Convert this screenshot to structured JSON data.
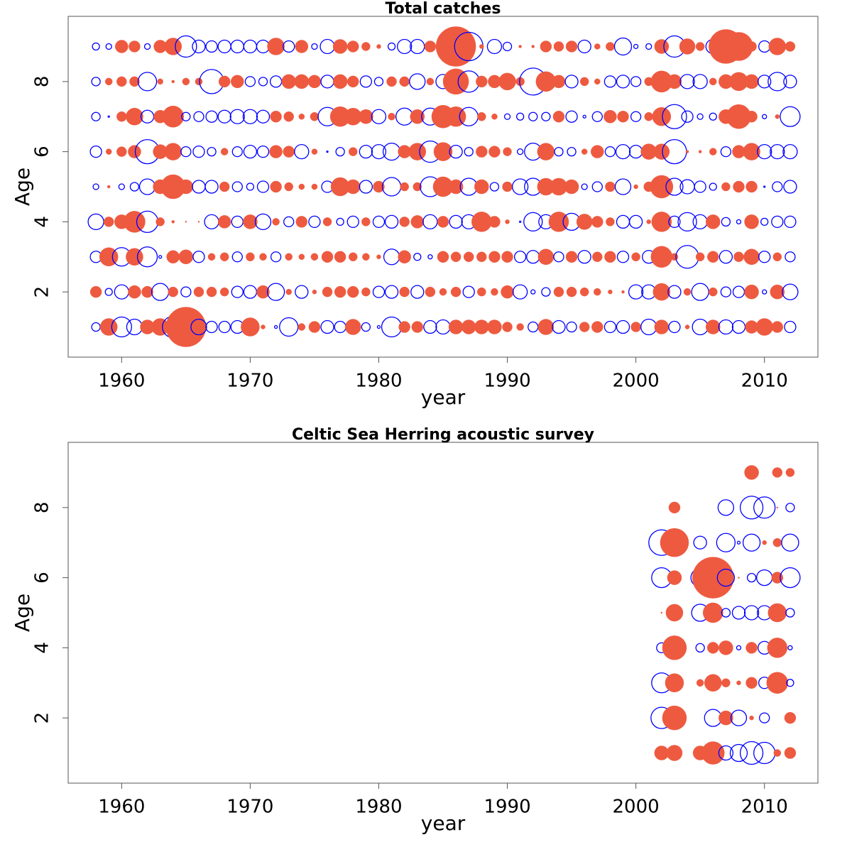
{
  "chart_data": [
    {
      "type": "bubble",
      "title": "Total catches",
      "x_label": "year",
      "y_label": "Age",
      "pos_color": "#ee5a40",
      "neg_color": "#0000ff",
      "xlim": [
        1955.84,
        2014.16
      ],
      "xticks": [
        1960,
        1970,
        1980,
        1990,
        2000,
        2010
      ],
      "ylim": [
        0.14,
        9.86
      ],
      "yticks": [
        2,
        4,
        6,
        8
      ],
      "x": [
        1958,
        1959,
        1960,
        1961,
        1962,
        1963,
        1964,
        1965,
        1966,
        1967,
        1968,
        1969,
        1970,
        1971,
        1972,
        1973,
        1974,
        1975,
        1976,
        1977,
        1978,
        1979,
        1980,
        1981,
        1982,
        1983,
        1984,
        1985,
        1986,
        1987,
        1988,
        1989,
        1990,
        1991,
        1992,
        1993,
        1994,
        1995,
        1996,
        1997,
        1998,
        1999,
        2000,
        2001,
        2002,
        2003,
        2004,
        2005,
        2006,
        2007,
        2008,
        2009,
        2010,
        2011,
        2012
      ],
      "y": [
        1,
        2,
        3,
        4,
        5,
        6,
        7,
        8,
        9
      ],
      "values": [
        [
          -0.6,
          1.2,
          -1.4,
          -1.1,
          1.0,
          1.2,
          -1.5,
          2.8,
          -1.1,
          -0.8,
          -0.8,
          -0.9,
          1.3,
          0.3,
          -0.2,
          -1.3,
          0.5,
          0.8,
          -0.9,
          -0.8,
          1.1,
          -0.6,
          -0.2,
          -1.4,
          0.8,
          0.8,
          -0.9,
          -1.0,
          1.0,
          1.0,
          1.0,
          1.0,
          0.7,
          0.5,
          -0.7,
          1.1,
          -0.9,
          -0.7,
          0.7,
          0.8,
          -0.8,
          -0.9,
          0.7,
          -1.1,
          1.0,
          -0.8,
          0.3,
          -1.1,
          1.0,
          -1.0,
          -0.9,
          0.9,
          1.2,
          0.8,
          -0.8
        ],
        [
          0.8,
          -0.5,
          -1.0,
          0.9,
          0.8,
          -1.2,
          0.7,
          -0.7,
          0.7,
          0.7,
          0.6,
          -0.8,
          -0.9,
          0.9,
          -1.2,
          0.4,
          -0.9,
          0.3,
          0.7,
          0.8,
          0.8,
          0.6,
          -0.8,
          -0.9,
          0.7,
          -0.9,
          0.7,
          0.5,
          0.7,
          -0.8,
          0.6,
          0.5,
          0.9,
          -1.0,
          -0.3,
          -0.6,
          0.7,
          0.7,
          0.6,
          0.5,
          0.3,
          0.2,
          -1.0,
          -1.0,
          1.2,
          -0.9,
          0.5,
          -1.2,
          0.6,
          -0.7,
          -0.8,
          1.0,
          -0.3,
          1.0,
          -1.1
        ],
        [
          -0.8,
          1.3,
          -1.3,
          1.2,
          -1.4,
          -0.2,
          0.9,
          1.0,
          -0.8,
          0.5,
          0.6,
          -0.7,
          0.6,
          0.5,
          -0.7,
          0.5,
          0.4,
          0.5,
          0.8,
          0.8,
          0.6,
          0.5,
          0.3,
          -1.1,
          0.9,
          -0.5,
          -0.3,
          0.8,
          0.7,
          0.7,
          0.7,
          0.8,
          0.8,
          -0.8,
          -0.9,
          1.1,
          -0.7,
          0.8,
          -0.9,
          0.7,
          0.8,
          -0.8,
          0.6,
          -0.9,
          1.5,
          0.5,
          -1.6,
          0.6,
          0.8,
          -0.9,
          0.7,
          1.1,
          -0.8,
          0.6,
          -0.7
        ],
        [
          -1.1,
          0.7,
          1.0,
          1.5,
          -1.5,
          0.6,
          0.2,
          0.1,
          0.1,
          -1.0,
          0.9,
          -0.8,
          1.0,
          -1.1,
          0.5,
          -0.7,
          0.8,
          -0.8,
          0.6,
          -0.5,
          -0.8,
          0.6,
          -0.8,
          -0.9,
          0.7,
          0.9,
          -1.0,
          0.8,
          -0.9,
          -1.0,
          1.4,
          0.8,
          0.3,
          -0.1,
          -1.3,
          -1.0,
          1.4,
          -1.2,
          1.1,
          0.8,
          0.6,
          -0.9,
          -0.9,
          0.3,
          1.4,
          -0.8,
          -1.3,
          -1.0,
          1.0,
          -0.6,
          -0.3,
          1.0,
          -0.5,
          -0.8,
          -0.8
        ],
        [
          -0.4,
          0.2,
          -0.4,
          -0.6,
          -1.1,
          1.0,
          1.7,
          1.0,
          -0.9,
          -0.9,
          0.7,
          -0.7,
          -0.5,
          -0.8,
          0.8,
          0.6,
          0.4,
          0.4,
          -0.8,
          1.3,
          1.0,
          -0.9,
          0.8,
          -1.3,
          0.6,
          0.6,
          -1.4,
          1.4,
          1.0,
          -1.2,
          1.0,
          -0.6,
          0.7,
          -1.1,
          -1.2,
          1.2,
          1.2,
          1.0,
          -0.4,
          -0.7,
          0.7,
          -1.1,
          0.3,
          0.7,
          1.6,
          -1.2,
          -1.0,
          -0.8,
          -0.5,
          0.6,
          0.8,
          0.8,
          -0.1,
          -0.7,
          -0.9
        ],
        [
          -0.8,
          0.4,
          0.7,
          0.9,
          -1.7,
          1.0,
          1.2,
          -0.7,
          -0.8,
          -0.6,
          0.5,
          -0.7,
          -0.9,
          -0.8,
          0.9,
          0.8,
          -1.0,
          0.4,
          -0.1,
          -0.6,
          0.6,
          -0.9,
          -1.0,
          -1.2,
          0.9,
          1.2,
          -1.5,
          1.3,
          -0.9,
          -0.6,
          0.8,
          0.8,
          0.6,
          -0.4,
          -1.2,
          1.2,
          -0.6,
          -0.6,
          0.4,
          0.9,
          -0.7,
          -1.0,
          -0.9,
          1.1,
          1.1,
          -1.7,
          0.2,
          0.2,
          0.5,
          -0.7,
          0.9,
          1.2,
          -1.0,
          -1.0,
          -1.0
        ],
        [
          -0.6,
          -0.1,
          0.7,
          1.2,
          -0.9,
          0.9,
          1.5,
          -0.6,
          -0.7,
          -0.8,
          -0.9,
          -1.0,
          -1.0,
          -0.9,
          0.8,
          0.7,
          0.4,
          0.6,
          -1.3,
          1.4,
          1.2,
          1.0,
          -1.0,
          0.5,
          -1.2,
          1.0,
          -1.2,
          1.6,
          1.4,
          -1.3,
          0.6,
          0.4,
          -0.4,
          -0.5,
          -0.6,
          -0.6,
          0.8,
          -0.8,
          -0.2,
          -0.7,
          0.9,
          0.8,
          -0.7,
          0.6,
          1.3,
          -1.7,
          -0.8,
          -0.4,
          -0.5,
          1.0,
          1.7,
          0.8,
          -0.3,
          0.3,
          -1.4
        ],
        [
          -0.6,
          0.5,
          0.7,
          0.7,
          -1.3,
          0.4,
          0.2,
          0.5,
          0.5,
          -1.7,
          0.8,
          0.9,
          -0.7,
          -0.6,
          -0.8,
          1.0,
          1.0,
          0.9,
          -0.9,
          1.0,
          0.8,
          -0.8,
          -0.6,
          0.7,
          0.7,
          -1.1,
          0.5,
          -1.0,
          1.8,
          -1.5,
          0.8,
          0.9,
          1.2,
          0.6,
          -1.9,
          1.4,
          0.9,
          -0.9,
          0.6,
          0.4,
          -0.8,
          -0.9,
          -0.7,
          0.6,
          1.5,
          1.0,
          -1.0,
          -1.0,
          0.5,
          1.0,
          1.3,
          1.0,
          -0.9,
          -1.3,
          -0.9
        ],
        [
          -0.5,
          -0.4,
          0.9,
          0.8,
          -0.4,
          0.9,
          1.2,
          -1.5,
          -0.9,
          -0.8,
          -0.9,
          -0.9,
          -0.9,
          -0.9,
          1.2,
          -0.8,
          0.9,
          -0.4,
          -1.0,
          1.0,
          0.8,
          0.6,
          0.3,
          -0.5,
          -1.0,
          -1.0,
          0.8,
          -0.4,
          2.8,
          -2.0,
          0.3,
          -1.0,
          -0.6,
          0.2,
          0.2,
          0.8,
          0.7,
          0.8,
          -0.9,
          0.4,
          0.6,
          -1.2,
          -0.3,
          -0.4,
          1.0,
          -1.5,
          1.1,
          0.6,
          -1.0,
          2.4,
          2.0,
          0.7,
          -0.8,
          1.2,
          0.7
        ]
      ]
    },
    {
      "type": "bubble",
      "title": "Celtic Sea Herring acoustic survey",
      "x_label": "year",
      "y_label": "Age",
      "pos_color": "#ee5a40",
      "neg_color": "#0000ff",
      "xlim": [
        1955.84,
        2014.16
      ],
      "xticks": [
        1960,
        1970,
        1980,
        1990,
        2000,
        2010
      ],
      "ylim": [
        0.14,
        9.86
      ],
      "yticks": [
        2,
        4,
        6,
        8
      ],
      "x": [
        2002,
        2003,
        2004,
        2005,
        2006,
        2007,
        2008,
        2009,
        2010,
        2011,
        2012
      ],
      "y": [
        1,
        2,
        3,
        4,
        5,
        6,
        7,
        8,
        9
      ],
      "values": [
        [
          1.0,
          1.1,
          null,
          1.0,
          1.6,
          -1.0,
          -1.2,
          -1.6,
          -1.5,
          0.5,
          0.8
        ],
        [
          -1.5,
          1.7,
          null,
          null,
          -1.2,
          1.0,
          -1.1,
          0.3,
          -0.7,
          null,
          0.8
        ],
        [
          -1.4,
          1.3,
          null,
          0.5,
          1.2,
          0.6,
          0.3,
          0.8,
          -0.8,
          1.5,
          -0.5
        ],
        [
          -0.7,
          1.7,
          null,
          -0.6,
          0.8,
          1.0,
          -0.3,
          0.8,
          -0.9,
          1.4,
          -0.3
        ],
        [
          0.1,
          1.2,
          null,
          -1.2,
          1.4,
          -0.6,
          -0.9,
          -1.0,
          -1.0,
          1.3,
          -0.6
        ],
        [
          -1.4,
          1.0,
          null,
          -1.3,
          2.9,
          -1.2,
          0.1,
          -0.6,
          -1.1,
          0.8,
          -1.4
        ],
        [
          -1.8,
          2.0,
          null,
          -0.9,
          null,
          -1.3,
          -0.2,
          -1.2,
          0.3,
          0.6,
          -1.2
        ],
        [
          null,
          0.8,
          null,
          null,
          null,
          -1.1,
          null,
          -1.6,
          -1.5,
          0.1,
          -0.6
        ],
        [
          null,
          null,
          null,
          null,
          null,
          null,
          null,
          1.0,
          null,
          0.7,
          0.6
        ]
      ]
    }
  ]
}
